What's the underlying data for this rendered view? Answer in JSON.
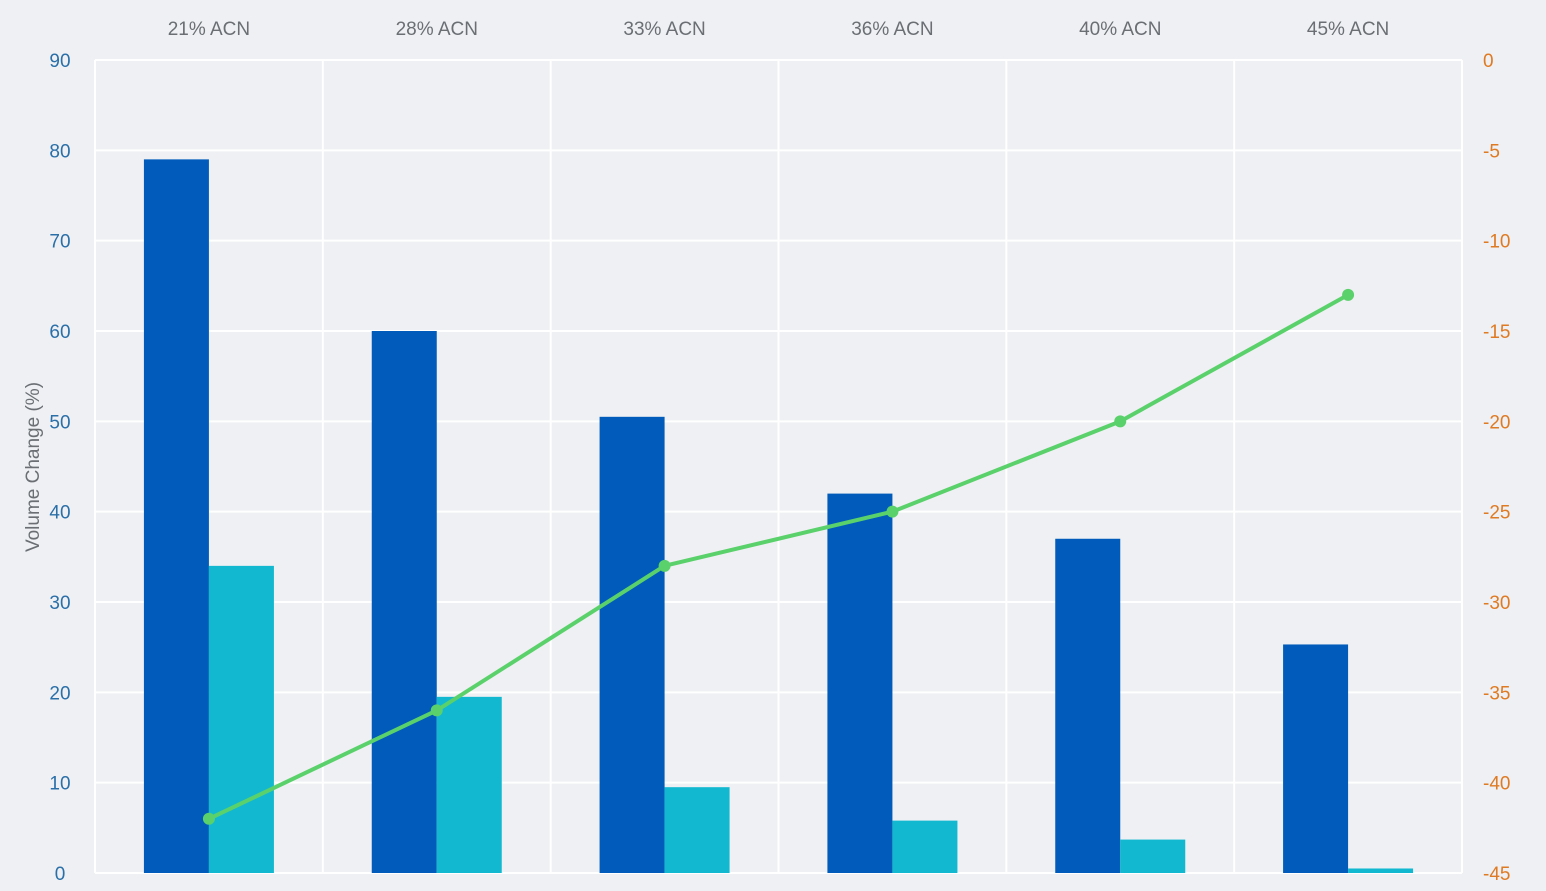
{
  "chart_data": {
    "type": "bar",
    "categories": [
      "21% ACN",
      "28% ACN",
      "33% ACN",
      "36% ACN",
      "40% ACN",
      "45% ACN"
    ],
    "series": [
      {
        "values": [
          79,
          60,
          50.5,
          42,
          37,
          25.3
        ],
        "color": "#005bbb",
        "axis": "left",
        "type": "bar"
      },
      {
        "values": [
          34,
          19.5,
          9.5,
          5.8,
          3.7,
          0.5
        ],
        "color": "#12b8d0",
        "axis": "left",
        "type": "bar"
      },
      {
        "values": [
          -42,
          -36,
          -28,
          -25,
          -20,
          -13
        ],
        "color": "#5ad16a",
        "axis": "right",
        "type": "line"
      }
    ],
    "ylabel": "Volume Change (%)",
    "ylim": [
      0,
      90
    ],
    "y2lim": [
      -45,
      0
    ],
    "yticks": [
      "0",
      "10",
      "20",
      "30",
      "40",
      "50",
      "60",
      "70",
      "80",
      "90"
    ],
    "y2ticks": [
      "-45",
      "-40",
      "-35",
      "-30",
      "-25",
      "-20",
      "-15",
      "-10",
      "-5",
      "0"
    ],
    "grid": true,
    "colors": {
      "left_axis": "#2a6fa8",
      "right_axis": "#e07a22",
      "grid": "#ffffff"
    }
  }
}
